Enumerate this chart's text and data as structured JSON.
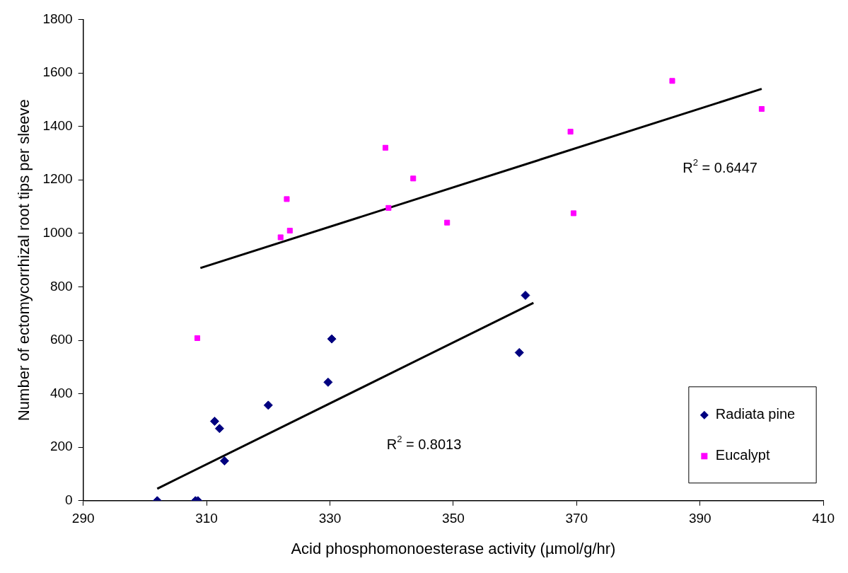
{
  "chart_data": {
    "type": "scatter",
    "xlabel": "Acid phosphomonoesterase activity (µmol/g/hr)",
    "ylabel": "Number of ectomycorrhizal root tips per sleeve",
    "xlim": [
      290,
      410
    ],
    "xticks": [
      290,
      310,
      330,
      350,
      370,
      390,
      410
    ],
    "ylim": [
      0,
      1800
    ],
    "yticks": [
      0,
      200,
      400,
      600,
      800,
      1000,
      1200,
      1400,
      1600,
      1800
    ],
    "grid": false,
    "legend": "bottom right",
    "series": [
      {
        "name": "Radiata pine",
        "color": "#000080",
        "marker": "diamond",
        "x": [
          302,
          308.2,
          308.6,
          311.3,
          312.1,
          312.9,
          320,
          329.7,
          330.3,
          360.7,
          361.7
        ],
        "values": [
          0,
          0,
          0,
          297,
          270,
          149,
          357,
          443,
          605,
          554,
          768
        ]
      },
      {
        "name": "Eucalypt",
        "color": "#ff00ff",
        "marker": "square",
        "x": [
          308.5,
          322,
          323,
          323.5,
          339,
          339.5,
          343.5,
          349,
          369,
          369.5,
          385.5,
          400
        ],
        "values": [
          608,
          985,
          1128,
          1010,
          1320,
          1095,
          1205,
          1040,
          1380,
          1075,
          1570,
          1465
        ]
      },
      {
        "type": "line",
        "color": "#000000",
        "marker": "none",
        "x": [
          309,
          400
        ],
        "values": [
          870,
          1540
        ]
      },
      {
        "type": "line",
        "color": "#000000",
        "marker": "none",
        "x": [
          302,
          363
        ],
        "values": [
          45,
          740
        ]
      }
    ],
    "annotations": [
      "R$^{2}$ = 0.6447",
      "R$^{2}$ = 0.8013"
    ]
  }
}
